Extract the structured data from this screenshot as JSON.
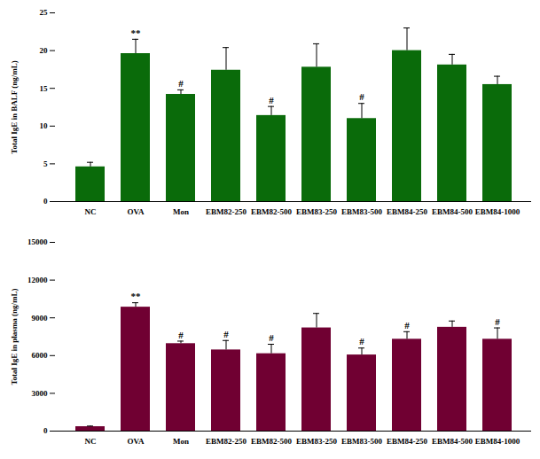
{
  "chart_data": [
    {
      "type": "bar",
      "y_label": "Total IgE in BALF (ng/mL)",
      "categories": [
        "NC",
        "OVA",
        "Mon",
        "EBM82-250",
        "EBM82-500",
        "EBM83-250",
        "EBM83-500",
        "EBM84-250",
        "EBM84-500",
        "EBM84-1000"
      ],
      "values": [
        4.6,
        19.6,
        14.2,
        17.4,
        11.4,
        17.8,
        11.0,
        20.0,
        18.1,
        15.5
      ],
      "errors": [
        0.6,
        1.9,
        0.6,
        3.0,
        1.2,
        3.1,
        2.0,
        3.0,
        1.4,
        1.1
      ],
      "annotations": [
        {
          "category": "OVA",
          "text": "**"
        },
        {
          "category": "Mon",
          "text": "#"
        },
        {
          "category": "EBM82-500",
          "text": "#"
        },
        {
          "category": "EBM83-500",
          "text": "#"
        }
      ],
      "color": "#0a6b0a",
      "ylim": [
        0,
        25
      ],
      "yticks": [
        0,
        5,
        10,
        15,
        20,
        25
      ],
      "grid": false
    },
    {
      "type": "bar",
      "y_label": "Total IgE in plasma (ng/mL)",
      "categories": [
        "NC",
        "OVA",
        "Mon",
        "EBM82-250",
        "EBM82-500",
        "EBM83-250",
        "EBM83-500",
        "EBM84-250",
        "EBM84-500",
        "EBM84-1000"
      ],
      "values": [
        350,
        9850,
        6950,
        6450,
        6150,
        8200,
        6050,
        7300,
        8250,
        7300
      ],
      "errors": [
        50,
        350,
        200,
        750,
        750,
        1150,
        550,
        600,
        500,
        900
      ],
      "annotations": [
        {
          "category": "OVA",
          "text": "**"
        },
        {
          "category": "Mon",
          "text": "#"
        },
        {
          "category": "EBM82-250",
          "text": "#"
        },
        {
          "category": "EBM82-500",
          "text": "#"
        },
        {
          "category": "EBM83-500",
          "text": "#"
        },
        {
          "category": "EBM84-250",
          "text": "#"
        },
        {
          "category": "EBM84-1000",
          "text": "#"
        }
      ],
      "color": "#700032",
      "ylim": [
        0,
        15000
      ],
      "yticks": [
        0,
        3000,
        6000,
        9000,
        12000,
        15000
      ],
      "grid": false
    }
  ]
}
